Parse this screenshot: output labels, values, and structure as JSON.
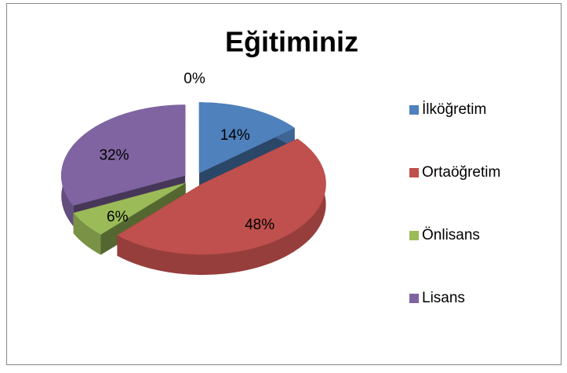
{
  "chart_data": {
    "type": "pie",
    "title": "Eğitiminiz",
    "categories": [
      "İlköğretim",
      "Ortaöğretim",
      "Önlisans",
      "Lisans",
      null
    ],
    "values": [
      14,
      48,
      6,
      32,
      0
    ],
    "value_labels": [
      "14%",
      "48%",
      "6%",
      "32%",
      "0%"
    ],
    "colors": [
      "#4f81bd",
      "#c0504d",
      "#9bbb59",
      "#8064a2",
      "#f79646"
    ],
    "legend": "right"
  }
}
